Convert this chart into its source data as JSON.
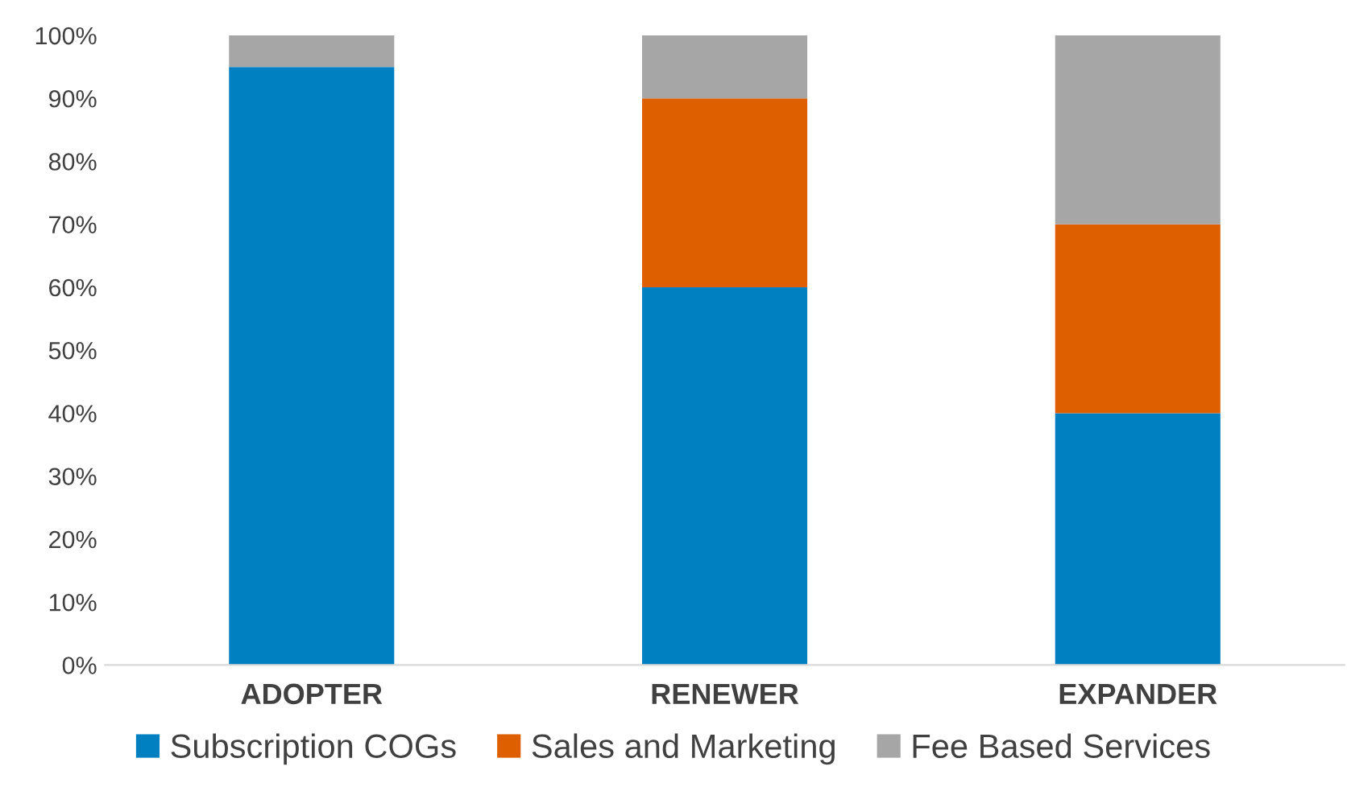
{
  "chart_data": {
    "type": "bar",
    "stacked": true,
    "categories": [
      "ADOPTER",
      "RENEWER",
      "EXPANDER"
    ],
    "series": [
      {
        "name": "Subscription COGs",
        "color": "#0080c0",
        "values": [
          95,
          60,
          40
        ]
      },
      {
        "name": "Sales and Marketing",
        "color": "#dd5f00",
        "values": [
          0,
          30,
          30
        ]
      },
      {
        "name": "Fee Based Services",
        "color": "#a6a6a6",
        "values": [
          5,
          10,
          30
        ]
      }
    ],
    "ylim": [
      0,
      100
    ],
    "yticks": [
      {
        "value": 0,
        "label": "0%"
      },
      {
        "value": 10,
        "label": "10%"
      },
      {
        "value": 20,
        "label": "20%"
      },
      {
        "value": 30,
        "label": "30%"
      },
      {
        "value": 40,
        "label": "40%"
      },
      {
        "value": 50,
        "label": "50%"
      },
      {
        "value": 60,
        "label": "60%"
      },
      {
        "value": 70,
        "label": "70%"
      },
      {
        "value": 80,
        "label": "80%"
      },
      {
        "value": 90,
        "label": "90%"
      },
      {
        "value": 100,
        "label": "100%"
      }
    ],
    "grid": false,
    "legend": "bottom"
  }
}
